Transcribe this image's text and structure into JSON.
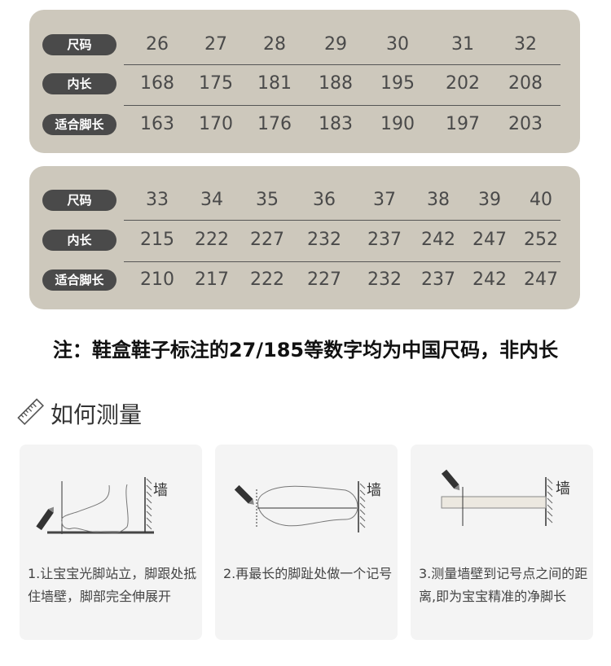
{
  "table1": {
    "labels": [
      "尺码",
      "内长",
      "适合脚长"
    ],
    "rows": [
      [
        "26",
        "27",
        "28",
        "29",
        "30",
        "31",
        "32"
      ],
      [
        "168",
        "175",
        "181",
        "188",
        "195",
        "202",
        "208"
      ],
      [
        "163",
        "170",
        "176",
        "183",
        "190",
        "197",
        "203"
      ]
    ]
  },
  "table2": {
    "labels": [
      "尺码",
      "内长",
      "适合脚长"
    ],
    "rows": [
      [
        "33",
        "34",
        "35",
        "36",
        "37",
        "38",
        "39",
        "40"
      ],
      [
        "215",
        "222",
        "227",
        "232",
        "237",
        "242",
        "247",
        "252"
      ],
      [
        "210",
        "217",
        "222",
        "227",
        "232",
        "237",
        "242",
        "247"
      ]
    ]
  },
  "note": "注：鞋盒鞋子标注的27/185等数字均为中国尺码，非内长",
  "howto": {
    "title": "如何测量",
    "icon": "ruler-icon"
  },
  "steps": [
    {
      "wall": "墙",
      "text": "1.让宝宝光脚站立，脚跟处抵住墙壁，脚部完全伸展开"
    },
    {
      "wall": "墙",
      "text": "2.再最长的脚趾处做一个记号"
    },
    {
      "wall": "墙",
      "text": "3.测量墙壁到记号点之间的距离,即为宝宝精准的净脚长"
    }
  ],
  "colors": {
    "panel": "#cdc8bc",
    "badge": "#4a4a4a",
    "card": "#f4f4f4"
  }
}
